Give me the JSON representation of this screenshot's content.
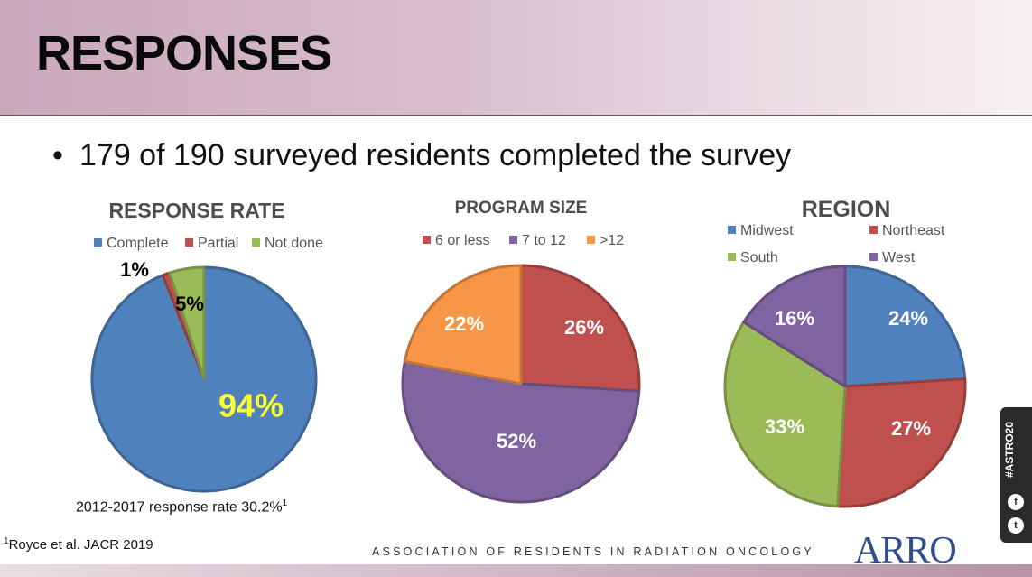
{
  "slide": {
    "title": "RESPONSES",
    "bullet_symbol": "•",
    "bullet": "179 of 190 surveyed residents completed the survey",
    "response_rate_note": "2012-2017 response rate 30.2%",
    "response_rate_sup": "1",
    "footnote_sup": "1",
    "footnote": "Royce et al. JACR 2019",
    "association": "ASSOCIATION OF RESIDENTS IN RADIATION ONCOLOGY",
    "logo": "ARRO",
    "social_tag": "#ASTRO20",
    "social_icons": [
      "f",
      "t"
    ]
  },
  "chart_data": [
    {
      "type": "pie",
      "title": "RESPONSE RATE",
      "categories": [
        "Complete",
        "Partial",
        "Not done"
      ],
      "values": [
        94,
        1,
        5
      ],
      "labels": [
        "94%",
        "1%",
        "5%"
      ],
      "colors": [
        "#4f81bd",
        "#c0504d",
        "#9bbb59"
      ],
      "label_colors": [
        "#ffff33",
        "#000000",
        "#000000"
      ],
      "legend": "top"
    },
    {
      "type": "pie",
      "title": "PROGRAM SIZE",
      "categories": [
        "6 or less",
        "7 to 12",
        ">12"
      ],
      "values": [
        26,
        52,
        22
      ],
      "labels": [
        "26%",
        "52%",
        "22%"
      ],
      "colors": [
        "#c0504d",
        "#8064a2",
        "#f79646"
      ],
      "label_colors": [
        "#ffffff",
        "#ffffff",
        "#ffffff"
      ],
      "legend": "top"
    },
    {
      "type": "pie",
      "title": "REGION",
      "categories": [
        "Midwest",
        "Northeast",
        "South",
        "West"
      ],
      "values": [
        24,
        27,
        33,
        16
      ],
      "labels": [
        "24%",
        "27%",
        "33%",
        "16%"
      ],
      "colors": [
        "#4f81bd",
        "#c0504d",
        "#9bbb59",
        "#8064a2"
      ],
      "label_colors": [
        "#ffffff",
        "#ffffff",
        "#ffffff",
        "#ffffff"
      ],
      "legend": "top"
    }
  ]
}
